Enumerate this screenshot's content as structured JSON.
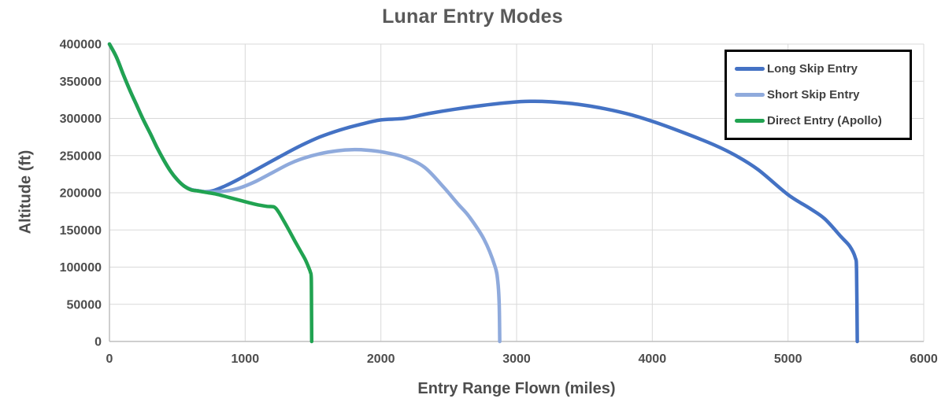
{
  "chart_data": {
    "type": "line",
    "title": "Lunar Entry Modes",
    "xlabel": "Entry Range Flown (miles)",
    "ylabel": "Altitude (ft)",
    "xlim": [
      0,
      6000
    ],
    "ylim": [
      0,
      400000
    ],
    "x_ticks": [
      0,
      1000,
      2000,
      3000,
      4000,
      5000,
      6000
    ],
    "y_ticks": [
      0,
      50000,
      100000,
      150000,
      200000,
      250000,
      300000,
      350000,
      400000
    ],
    "grid": true,
    "legend_position": "top-right",
    "axis_color": "#bfbfbf",
    "grid_color": "#d9d9d9",
    "text_color": "#4d4d4d",
    "series": [
      {
        "name": "Long Skip Entry",
        "color": "#4472c4",
        "points": [
          [
            0,
            400000
          ],
          [
            50,
            383000
          ],
          [
            100,
            360000
          ],
          [
            150,
            338000
          ],
          [
            200,
            318000
          ],
          [
            250,
            298000
          ],
          [
            300,
            280000
          ],
          [
            350,
            261000
          ],
          [
            400,
            244000
          ],
          [
            450,
            229000
          ],
          [
            500,
            217500
          ],
          [
            550,
            209000
          ],
          [
            600,
            204500
          ],
          [
            650,
            202800
          ],
          [
            700,
            201500
          ],
          [
            760,
            202500
          ],
          [
            850,
            209000
          ],
          [
            950,
            218000
          ],
          [
            1100,
            233000
          ],
          [
            1250,
            248000
          ],
          [
            1400,
            262500
          ],
          [
            1550,
            275000
          ],
          [
            1700,
            284500
          ],
          [
            1850,
            292000
          ],
          [
            2000,
            298000
          ],
          [
            2170,
            300000
          ],
          [
            2350,
            306500
          ],
          [
            2550,
            312500
          ],
          [
            2750,
            317500
          ],
          [
            2950,
            321500
          ],
          [
            3100,
            323000
          ],
          [
            3250,
            322300
          ],
          [
            3450,
            319000
          ],
          [
            3650,
            313000
          ],
          [
            3850,
            304500
          ],
          [
            4050,
            293000
          ],
          [
            4250,
            279500
          ],
          [
            4460,
            264000
          ],
          [
            4620,
            249500
          ],
          [
            4780,
            231000
          ],
          [
            5000,
            197500
          ],
          [
            5160,
            179000
          ],
          [
            5270,
            165000
          ],
          [
            5390,
            141000
          ],
          [
            5455,
            128000
          ],
          [
            5495,
            113000
          ],
          [
            5505,
            95000
          ],
          [
            5510,
            0
          ]
        ]
      },
      {
        "name": "Short Skip Entry",
        "color": "#8faadc",
        "points": [
          [
            0,
            400000
          ],
          [
            50,
            383000
          ],
          [
            100,
            360000
          ],
          [
            150,
            338000
          ],
          [
            200,
            318000
          ],
          [
            250,
            298000
          ],
          [
            300,
            280000
          ],
          [
            350,
            261000
          ],
          [
            400,
            244000
          ],
          [
            450,
            229000
          ],
          [
            500,
            217500
          ],
          [
            550,
            209000
          ],
          [
            600,
            204500
          ],
          [
            650,
            202800
          ],
          [
            700,
            201300
          ],
          [
            780,
            201200
          ],
          [
            880,
            203000
          ],
          [
            960,
            206500
          ],
          [
            1080,
            215500
          ],
          [
            1200,
            227000
          ],
          [
            1320,
            238500
          ],
          [
            1430,
            246500
          ],
          [
            1550,
            252500
          ],
          [
            1680,
            256500
          ],
          [
            1790,
            258000
          ],
          [
            1900,
            257300
          ],
          [
            2020,
            254500
          ],
          [
            2170,
            248000
          ],
          [
            2320,
            234500
          ],
          [
            2460,
            208000
          ],
          [
            2570,
            184500
          ],
          [
            2650,
            168000
          ],
          [
            2760,
            137500
          ],
          [
            2840,
            101500
          ],
          [
            2862,
            80000
          ],
          [
            2872,
            50000
          ],
          [
            2876,
            0
          ]
        ]
      },
      {
        "name": "Direct Entry (Apollo)",
        "color": "#21a351",
        "points": [
          [
            0,
            400000
          ],
          [
            50,
            383000
          ],
          [
            100,
            360000
          ],
          [
            150,
            338000
          ],
          [
            200,
            318000
          ],
          [
            250,
            298000
          ],
          [
            300,
            280000
          ],
          [
            350,
            261000
          ],
          [
            400,
            244000
          ],
          [
            450,
            229000
          ],
          [
            500,
            217500
          ],
          [
            550,
            209000
          ],
          [
            600,
            204000
          ],
          [
            650,
            202500
          ],
          [
            700,
            200800
          ],
          [
            780,
            198500
          ],
          [
            880,
            193800
          ],
          [
            980,
            189000
          ],
          [
            1080,
            184300
          ],
          [
            1160,
            181700
          ],
          [
            1215,
            180700
          ],
          [
            1248,
            173500
          ],
          [
            1285,
            162000
          ],
          [
            1325,
            149000
          ],
          [
            1365,
            135500
          ],
          [
            1405,
            122500
          ],
          [
            1442,
            110500
          ],
          [
            1468,
            99500
          ],
          [
            1481,
            93000
          ],
          [
            1487,
            85000
          ],
          [
            1489,
            40000
          ],
          [
            1490,
            0
          ]
        ]
      }
    ]
  }
}
